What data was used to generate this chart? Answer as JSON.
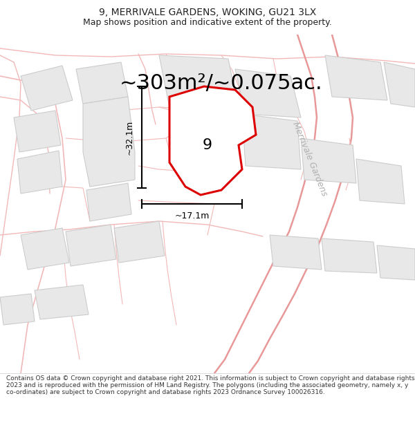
{
  "title_line1": "9, MERRIVALE GARDENS, WOKING, GU21 3LX",
  "title_line2": "Map shows position and indicative extent of the property.",
  "area_text": "~303m²/~0.075ac.",
  "property_label": "9",
  "dim_vertical": "~32.1m",
  "dim_horizontal": "~17.1m",
  "street_label": "Merrivale Gardens",
  "footer_text": "Contains OS data © Crown copyright and database right 2021. This information is subject to Crown copyright and database rights 2023 and is reproduced with the permission of HM Land Registry. The polygons (including the associated geometry, namely x, y co-ordinates) are subject to Crown copyright and database rights 2023 Ordnance Survey 100026316.",
  "bg_color": "#ffffff",
  "map_bg": "#ffffff",
  "property_fill": "#ffffff",
  "property_edge": "#dd0000",
  "road_color": "#f2b8b8",
  "road_color2": "#e89898",
  "building_fill": "#e8e8e8",
  "building_edge": "#cccccc",
  "dim_line_color": "#333333",
  "street_label_color": "#b0b0b0",
  "title_fontsize": 10,
  "subtitle_fontsize": 9,
  "area_fontsize": 22,
  "label_fontsize": 16,
  "dim_fontsize": 9,
  "street_fontsize": 9,
  "footer_fontsize": 6.5
}
